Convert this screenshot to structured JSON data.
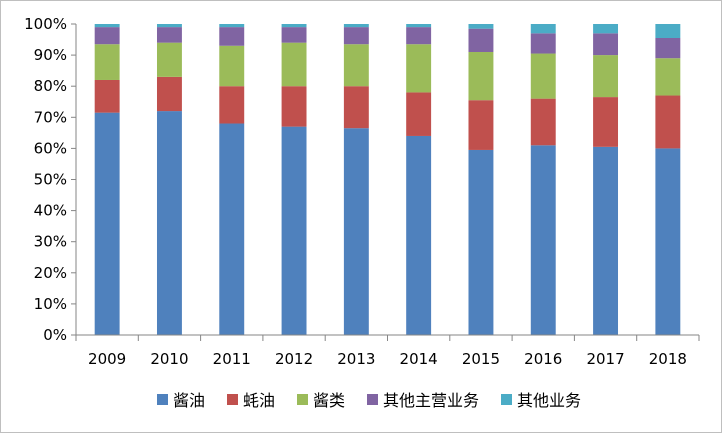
{
  "chart_data": {
    "type": "bar",
    "stacked": true,
    "percent": true,
    "title": "",
    "xlabel": "",
    "ylabel": "",
    "ylim": [
      0,
      100
    ],
    "y_ticks": [
      "0%",
      "10%",
      "20%",
      "30%",
      "40%",
      "50%",
      "60%",
      "70%",
      "80%",
      "90%",
      "100%"
    ],
    "categories": [
      "2009",
      "2010",
      "2011",
      "2012",
      "2013",
      "2014",
      "2015",
      "2016",
      "2017",
      "2018"
    ],
    "legend_position": "bottom",
    "grid": false,
    "series": [
      {
        "name": "酱油",
        "color": "#4f81bd",
        "values": [
          71.5,
          72.0,
          68.0,
          67.0,
          66.5,
          64.0,
          59.5,
          61.0,
          60.5,
          60.0
        ]
      },
      {
        "name": "蚝油",
        "color": "#c0504d",
        "values": [
          10.5,
          11.0,
          12.0,
          13.0,
          13.5,
          14.0,
          16.0,
          15.0,
          16.0,
          17.0
        ]
      },
      {
        "name": "酱类",
        "color": "#9bbb59",
        "values": [
          11.5,
          11.0,
          13.0,
          14.0,
          13.5,
          15.5,
          15.5,
          14.5,
          13.5,
          12.0
        ]
      },
      {
        "name": "其他主营业务",
        "color": "#8064a2",
        "values": [
          5.5,
          5.0,
          6.0,
          5.0,
          5.5,
          5.5,
          7.5,
          6.5,
          7.0,
          6.5
        ]
      },
      {
        "name": "其他业务",
        "color": "#4bacc6",
        "values": [
          1.0,
          1.0,
          1.0,
          1.0,
          1.0,
          1.0,
          1.5,
          3.0,
          3.0,
          4.5
        ]
      }
    ]
  }
}
